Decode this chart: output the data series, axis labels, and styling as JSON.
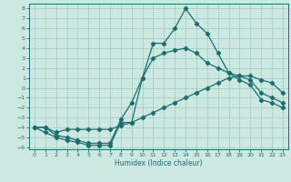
{
  "xlabel": "Humidex (Indice chaleur)",
  "x": [
    0,
    1,
    2,
    3,
    4,
    5,
    6,
    7,
    8,
    9,
    10,
    11,
    12,
    13,
    14,
    15,
    16,
    17,
    18,
    19,
    20,
    21,
    22,
    23
  ],
  "line1": [
    -4,
    -4.5,
    -5,
    -5.3,
    -5.5,
    -5.8,
    -5.8,
    -5.8,
    -3.5,
    -3.5,
    1,
    4.5,
    4.5,
    6,
    8,
    6.5,
    5.5,
    3.5,
    1.5,
    0.8,
    0.3,
    -1.2,
    -1.5,
    -2
  ],
  "line2": [
    -4,
    -4,
    -4.8,
    -5,
    -5.3,
    -5.6,
    -5.6,
    -5.6,
    -3.2,
    -1.5,
    1,
    3,
    3.5,
    3.8,
    4,
    3.5,
    2.5,
    2,
    1.5,
    1.2,
    0.8,
    -0.5,
    -1.0,
    -1.5
  ],
  "line3": [
    -4,
    -4,
    -4.5,
    -4.2,
    -4.2,
    -4.2,
    -4.2,
    -4.2,
    -3.8,
    -3.5,
    -3,
    -2.5,
    -2,
    -1.5,
    -1,
    -0.5,
    0,
    0.5,
    1,
    1.2,
    1.2,
    0.8,
    0.5,
    -0.5
  ],
  "color": "#1a7070",
  "bg_color": "#cce8e0",
  "grid_color": "#99ccc0",
  "xlim": [
    -0.5,
    23.5
  ],
  "ylim": [
    -6.2,
    8.5
  ],
  "yticks": [
    8,
    7,
    6,
    5,
    4,
    3,
    2,
    1,
    0,
    -1,
    -2,
    -3,
    -4,
    -5,
    -6
  ],
  "xticks": [
    0,
    1,
    2,
    3,
    4,
    5,
    6,
    7,
    8,
    9,
    10,
    11,
    12,
    13,
    14,
    15,
    16,
    17,
    18,
    19,
    20,
    21,
    22,
    23
  ],
  "tick_fontsize": 4.5,
  "xlabel_fontsize": 5.5,
  "marker_size": 2.2,
  "linewidth": 0.9
}
